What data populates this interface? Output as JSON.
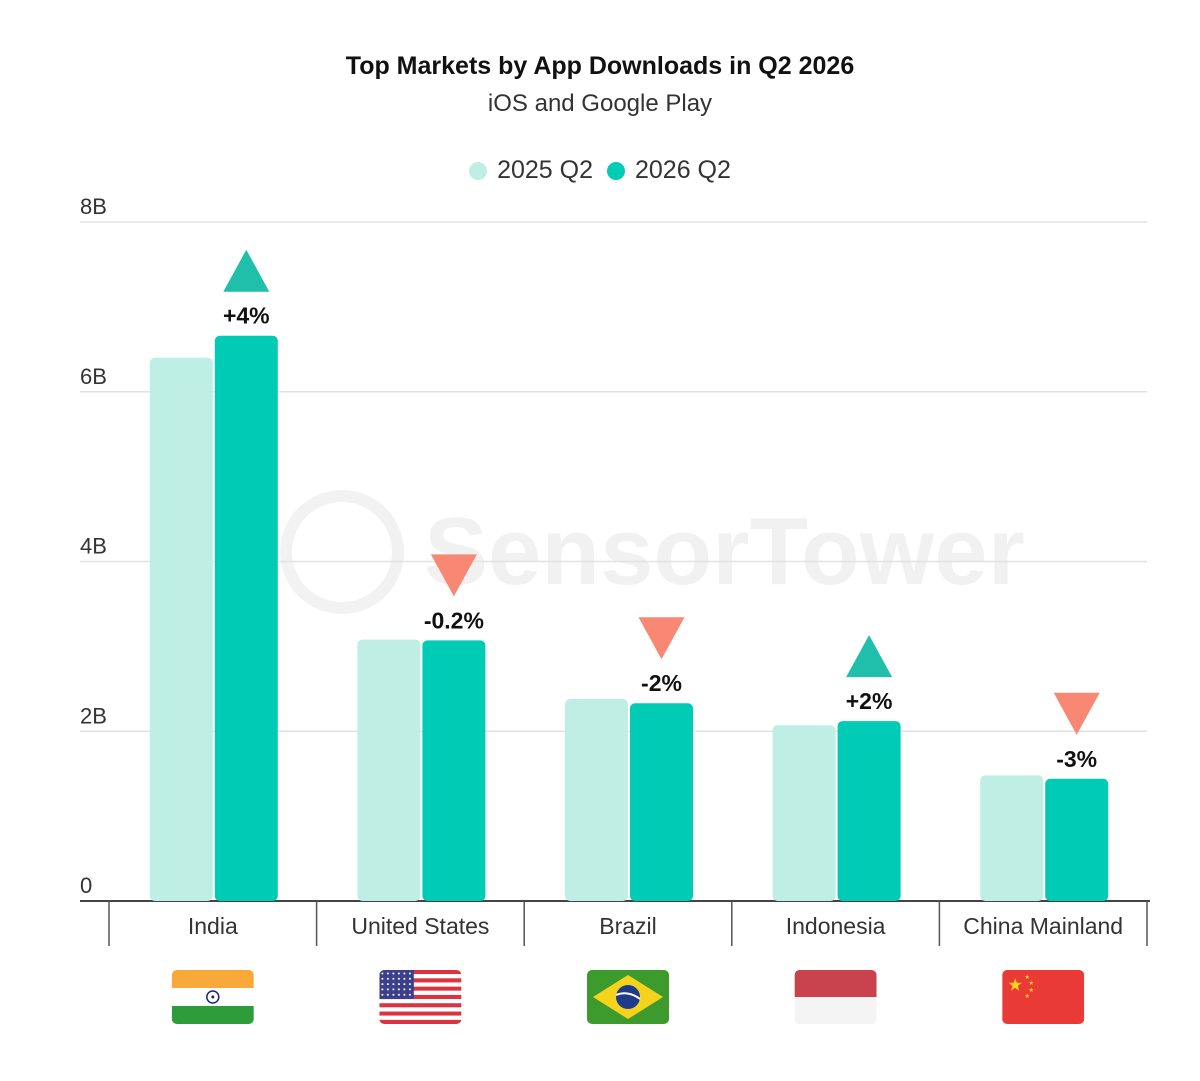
{
  "colors": {
    "series_2025": "#bfeee5",
    "series_2026": "#00ccb5",
    "up": "#1fbfaa",
    "down": "#f88873"
  },
  "watermark": {
    "text": "SensorTower"
  },
  "chart_data": {
    "type": "bar",
    "title": "Top Markets by App Downloads in Q2 2026",
    "subtitle": "iOS and Google Play",
    "xlabel": "",
    "ylabel": "",
    "ylim": [
      0,
      8
    ],
    "yticks": [
      "0",
      "2B",
      "4B",
      "6B",
      "8B"
    ],
    "grid": true,
    "legend_position": "top",
    "categories": [
      "India",
      "United States",
      "Brazil",
      "Indonesia",
      "China Mainland"
    ],
    "flags": [
      "india-flag",
      "us-flag",
      "brazil-flag",
      "indonesia-flag",
      "china-flag"
    ],
    "series": [
      {
        "name": "2025 Q2",
        "values": [
          6.4,
          3.08,
          2.38,
          2.07,
          1.48
        ]
      },
      {
        "name": "2026 Q2",
        "values": [
          6.66,
          3.07,
          2.33,
          2.12,
          1.44
        ]
      }
    ],
    "changes": [
      "+4%",
      "-0.2%",
      "-2%",
      "+2%",
      "-3%"
    ],
    "change_direction": [
      "up",
      "down",
      "down",
      "up",
      "down"
    ]
  }
}
